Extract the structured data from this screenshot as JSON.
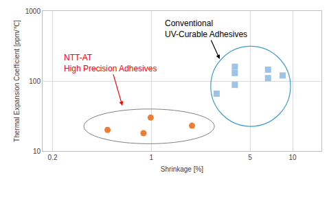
{
  "chart_data": {
    "type": "scatter",
    "x_label": "Shrinkage [%]",
    "y_label": "Thermal Expansion Coefficient [ppm/℃]",
    "log": true,
    "grid": true,
    "xlim": [
      0.17,
      16
    ],
    "xticks": [
      0.2,
      1,
      5,
      10
    ],
    "ylim": [
      10,
      1000
    ],
    "yticks": [
      10,
      100,
      1000
    ],
    "series": [
      {
        "color": "#ed7d31",
        "marker": "circle",
        "x": [
          0.49,
          0.88,
          0.99,
          1.94
        ],
        "values": [
          20,
          18,
          30,
          23
        ]
      },
      {
        "color": "#9dc3e6",
        "marker": "square",
        "x": [
          2.9,
          3.9,
          3.9,
          3.9,
          6.7,
          6.7,
          8.5
        ],
        "values": [
          66,
          88,
          130,
          160,
          145,
          110,
          120
        ]
      }
    ],
    "annotations": [
      {
        "text": "NTT-AT\nHigh Precision Adhesives",
        "color": "#ff0000"
      },
      {
        "text": "Conventional\nUV-Curable Adhesives",
        "color": "#000000"
      }
    ]
  }
}
